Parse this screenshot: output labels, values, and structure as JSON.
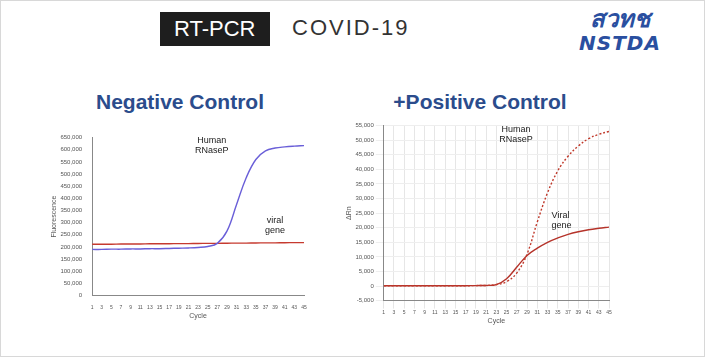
{
  "header": {
    "label": "RT-PCR",
    "title": "COVID-19",
    "logo": [
      "สวทช",
      "NSTDA"
    ]
  },
  "chart_data": [
    {
      "type": "line",
      "title": "Negative Control",
      "x_label": "Cycle",
      "y_label": "Fluorescence",
      "grid": false,
      "x": [
        1,
        3,
        5,
        7,
        9,
        11,
        13,
        15,
        17,
        19,
        21,
        23,
        25,
        27,
        29,
        31,
        33,
        35,
        37,
        39,
        41,
        43,
        45
      ],
      "xlim": [
        1,
        45
      ],
      "xticks": [
        1,
        3,
        5,
        7,
        9,
        11,
        13,
        15,
        17,
        19,
        21,
        23,
        25,
        27,
        29,
        31,
        33,
        35,
        37,
        39,
        41,
        43,
        45
      ],
      "ylim": [
        0,
        650000
      ],
      "yticks": [
        0,
        {
          "value": 50000,
          "label": "50,000"
        },
        {
          "value": 100000,
          "label": "100,000"
        },
        {
          "value": 150000,
          "label": "150,000"
        },
        {
          "value": 200000,
          "label": "200,000"
        },
        {
          "value": 250000,
          "label": "250,000"
        },
        {
          "value": 300000,
          "label": "300,000"
        },
        {
          "value": 350000,
          "label": "350,000"
        },
        {
          "value": 400000,
          "label": "400,000"
        },
        {
          "value": 450000,
          "label": "450,000"
        },
        {
          "value": 500000,
          "label": "500,000"
        },
        {
          "value": 550000,
          "label": "550,000"
        },
        {
          "value": 600000,
          "label": "600,000"
        },
        {
          "value": 650000,
          "label": "650,000"
        }
      ],
      "series": [
        {
          "name": "Human RNaseP",
          "color": "#6a5fd8",
          "line_style": "solid",
          "values": [
            190000,
            190000,
            191000,
            191000,
            192000,
            192000,
            193000,
            193000,
            194000,
            195000,
            196000,
            198000,
            202000,
            215000,
            265000,
            375000,
            485000,
            560000,
            595000,
            607000,
            612000,
            615000,
            617000
          ]
        },
        {
          "name": "viral gene",
          "color": "#c63a2f",
          "line_style": "solid",
          "values": [
            211000,
            211000,
            211500,
            212000,
            212000,
            212500,
            213000,
            213000,
            213500,
            214000,
            214000,
            214500,
            215000,
            215000,
            215500,
            216000,
            216000,
            216500,
            217000,
            217000,
            217500,
            218000,
            218000
          ]
        }
      ]
    },
    {
      "type": "line",
      "title": "+Positive Control",
      "x_label": "Cycle",
      "y_label": "ΔRn",
      "grid": true,
      "x": [
        1,
        3,
        5,
        7,
        9,
        11,
        13,
        15,
        17,
        19,
        21,
        23,
        25,
        27,
        29,
        31,
        33,
        35,
        37,
        39,
        41,
        43,
        45
      ],
      "xlim": [
        1,
        45
      ],
      "xticks": [
        1,
        3,
        5,
        7,
        9,
        11,
        13,
        15,
        17,
        19,
        21,
        23,
        25,
        27,
        29,
        31,
        33,
        35,
        37,
        39,
        41,
        43,
        45
      ],
      "ylim": [
        -5000,
        55000
      ],
      "yticks": [
        {
          "value": -5000,
          "label": "-5,000"
        },
        0,
        {
          "value": 5000,
          "label": "5,000"
        },
        {
          "value": 10000,
          "label": "10,000"
        },
        {
          "value": 15000,
          "label": "15,000"
        },
        {
          "value": 20000,
          "label": "20,000"
        },
        {
          "value": 25000,
          "label": "25,000"
        },
        {
          "value": 30000,
          "label": "30,000"
        },
        {
          "value": 35000,
          "label": "35,000"
        },
        {
          "value": 40000,
          "label": "40,000"
        },
        {
          "value": 45000,
          "label": "45,000"
        },
        {
          "value": 50000,
          "label": "50,000"
        },
        {
          "value": 55000,
          "label": "55,000"
        }
      ],
      "series": [
        {
          "name": "Human RNaseP",
          "color": "#c0392b",
          "line_style": "dotted",
          "values": [
            100,
            100,
            100,
            100,
            100,
            100,
            100,
            100,
            100,
            150,
            200,
            500,
            1500,
            4500,
            11000,
            22000,
            32000,
            39500,
            44500,
            48000,
            50500,
            52000,
            53000
          ]
        },
        {
          "name": "Viral gene",
          "color": "#b5332a",
          "line_style": "solid",
          "values": [
            100,
            100,
            100,
            100,
            100,
            100,
            100,
            100,
            100,
            150,
            200,
            500,
            2500,
            6500,
            10500,
            13000,
            15000,
            16500,
            17700,
            18600,
            19300,
            19800,
            20200
          ]
        }
      ]
    }
  ]
}
